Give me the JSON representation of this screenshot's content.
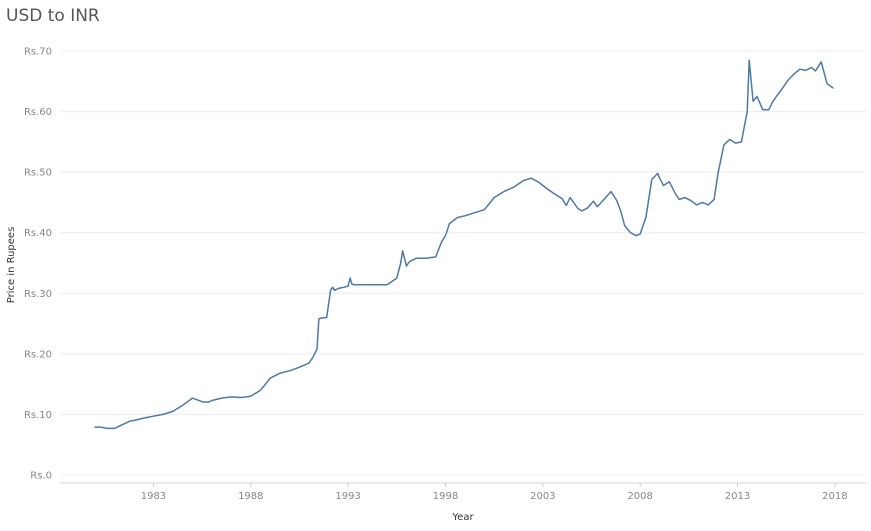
{
  "title": "USD to INR",
  "chart_data": {
    "type": "line",
    "title": "USD to INR",
    "xlabel": "Year",
    "ylabel": "Price in Rupees",
    "xlim": [
      1978.2,
      2019.6
    ],
    "ylim": [
      0,
      70
    ],
    "x_ticks": [
      1983,
      1988,
      1993,
      1998,
      2003,
      2008,
      2013,
      2018
    ],
    "x_tick_labels": [
      "1983",
      "1988",
      "1993",
      "1998",
      "2003",
      "2008",
      "2013",
      "2018"
    ],
    "y_ticks": [
      0,
      10,
      20,
      30,
      40,
      50,
      60,
      70
    ],
    "y_tick_labels": [
      "Rs.0",
      "Rs.10",
      "Rs.20",
      "Rs.30",
      "Rs.40",
      "Rs.50",
      "Rs.60",
      "Rs.70"
    ],
    "grid": true,
    "line_color": "#4e79a7",
    "series": [
      {
        "x": [
          1980.0,
          1980.3,
          1980.6,
          1981.0,
          1981.4,
          1981.8,
          1982.0,
          1982.5,
          1983.0,
          1983.5,
          1984.0,
          1984.5,
          1985.0,
          1985.5,
          1985.8,
          1986.0,
          1986.5,
          1987.0,
          1987.5,
          1988.0,
          1988.5,
          1989.0,
          1989.5,
          1990.0,
          1990.5,
          1991.0,
          1991.2,
          1991.4,
          1991.5,
          1991.6,
          1991.9,
          1992.1,
          1992.2,
          1992.3,
          1992.5,
          1992.8,
          1993.0,
          1993.1,
          1993.2,
          1993.3,
          1994.0,
          1995.0,
          1995.5,
          1995.7,
          1995.8,
          1996.0,
          1996.1,
          1996.2,
          1996.5,
          1997.0,
          1997.5,
          1997.8,
          1998.0,
          1998.2,
          1998.6,
          1999.0,
          1999.5,
          2000.0,
          2000.5,
          2001.0,
          2001.5,
          2002.0,
          2002.4,
          2002.8,
          2003.2,
          2003.6,
          2004.0,
          2004.2,
          2004.4,
          2004.8,
          2005.0,
          2005.3,
          2005.6,
          2005.8,
          2006.2,
          2006.5,
          2006.8,
          2007.0,
          2007.2,
          2007.5,
          2007.8,
          2008.0,
          2008.3,
          2008.6,
          2008.9,
          2009.0,
          2009.2,
          2009.5,
          2009.8,
          2010.0,
          2010.3,
          2010.6,
          2010.9,
          2011.2,
          2011.5,
          2011.8,
          2012.0,
          2012.3,
          2012.6,
          2012.9,
          2013.2,
          2013.5,
          2013.6,
          2013.8,
          2014.0,
          2014.3,
          2014.6,
          2014.8,
          2015.0,
          2015.3,
          2015.6,
          2015.9,
          2016.2,
          2016.5,
          2016.8,
          2017.0,
          2017.3,
          2017.6,
          2017.9
        ],
        "y": [
          7.9,
          7.9,
          7.7,
          7.7,
          8.3,
          8.9,
          9.0,
          9.4,
          9.7,
          10.0,
          10.5,
          11.5,
          12.7,
          12.1,
          12.0,
          12.3,
          12.7,
          12.9,
          12.8,
          13.0,
          14.0,
          16.0,
          16.8,
          17.2,
          17.8,
          18.5,
          19.5,
          20.8,
          25.8,
          25.9,
          26.0,
          30.5,
          31.0,
          30.5,
          30.8,
          31.0,
          31.2,
          32.5,
          31.5,
          31.4,
          31.4,
          31.4,
          32.5,
          35.0,
          37.0,
          34.5,
          35.0,
          35.3,
          35.8,
          35.8,
          36.0,
          38.5,
          39.5,
          41.5,
          42.5,
          42.8,
          43.3,
          43.8,
          45.8,
          46.8,
          47.5,
          48.6,
          49.0,
          48.3,
          47.3,
          46.4,
          45.6,
          44.5,
          45.8,
          44.0,
          43.6,
          44.1,
          45.2,
          44.3,
          45.7,
          46.8,
          45.3,
          43.6,
          41.2,
          40.0,
          39.5,
          39.8,
          42.6,
          48.8,
          49.8,
          49.0,
          47.8,
          48.4,
          46.5,
          45.5,
          45.8,
          45.3,
          44.6,
          45.0,
          44.6,
          45.5,
          49.8,
          54.5,
          55.4,
          54.8,
          55.0,
          60.0,
          68.5,
          61.7,
          62.5,
          60.3,
          60.3,
          61.6,
          62.5,
          63.8,
          65.2,
          66.2,
          67.0,
          66.8,
          67.3,
          66.7,
          68.2,
          64.6,
          63.9
        ]
      }
    ]
  }
}
